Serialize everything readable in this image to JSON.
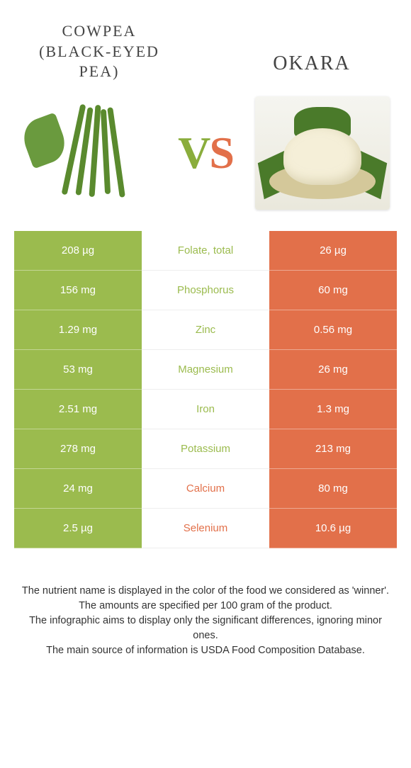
{
  "leftFood": {
    "title": "COWPEA (BLACK-EYED PEA)",
    "color": "#9bbb4e",
    "imgAlt": "cowpea"
  },
  "rightFood": {
    "title": "OKARA",
    "color": "#e2704a",
    "imgAlt": "okara"
  },
  "vs": {
    "v": "V",
    "s": "S"
  },
  "rows": [
    {
      "left": "208 µg",
      "mid": "Folate, total",
      "right": "26 µg",
      "winner": "left"
    },
    {
      "left": "156 mg",
      "mid": "Phosphorus",
      "right": "60 mg",
      "winner": "left"
    },
    {
      "left": "1.29 mg",
      "mid": "Zinc",
      "right": "0.56 mg",
      "winner": "left"
    },
    {
      "left": "53 mg",
      "mid": "Magnesium",
      "right": "26 mg",
      "winner": "left"
    },
    {
      "left": "2.51 mg",
      "mid": "Iron",
      "right": "1.3 mg",
      "winner": "left"
    },
    {
      "left": "278 mg",
      "mid": "Potassium",
      "right": "213 mg",
      "winner": "left"
    },
    {
      "left": "24 mg",
      "mid": "Calcium",
      "right": "80 mg",
      "winner": "right"
    },
    {
      "left": "2.5 µg",
      "mid": "Selenium",
      "right": "10.6 µg",
      "winner": "right"
    }
  ],
  "footnotes": [
    "The nutrient name is displayed in the color of the food we considered as 'winner'.",
    "The amounts are specified per 100 gram of the product.",
    "The infographic aims to display only the significant differences, ignoring minor ones.",
    "The main source of information is USDA Food Composition Database."
  ]
}
